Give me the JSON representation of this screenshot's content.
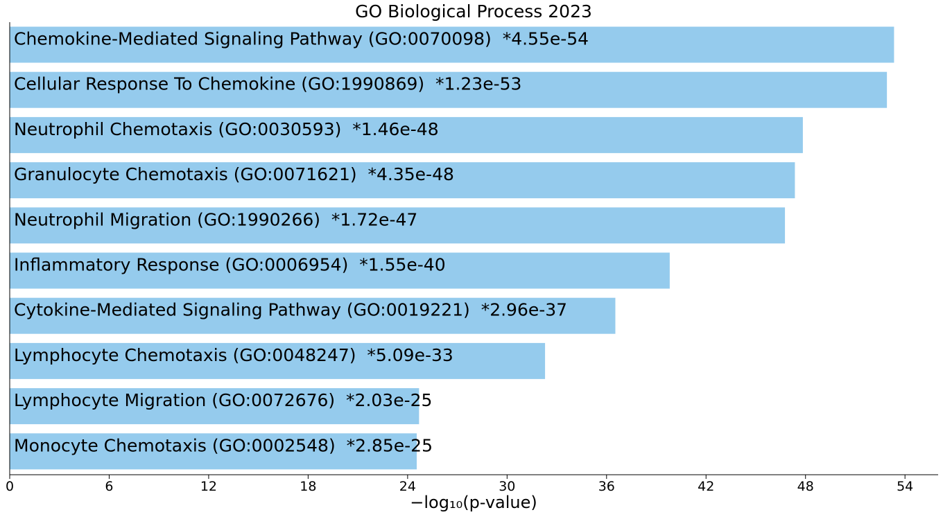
{
  "chart_data": {
    "type": "bar",
    "orientation": "horizontal",
    "title": "GO Biological Process 2023",
    "xlabel": "−log₁₀(p-value)",
    "ylabel": "",
    "xlim": [
      0,
      56
    ],
    "xticks": [
      0,
      6,
      12,
      18,
      24,
      30,
      36,
      42,
      48,
      54
    ],
    "grid": false,
    "bar_color": "#95cbed",
    "categories": [
      "Chemokine-Mediated Signaling Pathway (GO:0070098)  *4.55e-54",
      "Cellular Response To Chemokine (GO:1990869)  *1.23e-53",
      "Neutrophil Chemotaxis (GO:0030593)  *1.46e-48",
      "Granulocyte Chemotaxis (GO:0071621)  *4.35e-48",
      "Neutrophil Migration (GO:1990266)  *1.72e-47",
      "Inflammatory Response (GO:0006954)  *1.55e-40",
      "Cytokine-Mediated Signaling Pathway (GO:0019221)  *2.96e-37",
      "Lymphocyte Chemotaxis (GO:0048247)  *5.09e-33",
      "Lymphocyte Migration (GO:0072676)  *2.03e-25",
      "Monocyte Chemotaxis (GO:0002548)  *2.85e-25"
    ],
    "values": [
      53.34,
      52.91,
      47.84,
      47.36,
      46.76,
      39.81,
      36.53,
      32.29,
      24.69,
      24.55
    ]
  }
}
